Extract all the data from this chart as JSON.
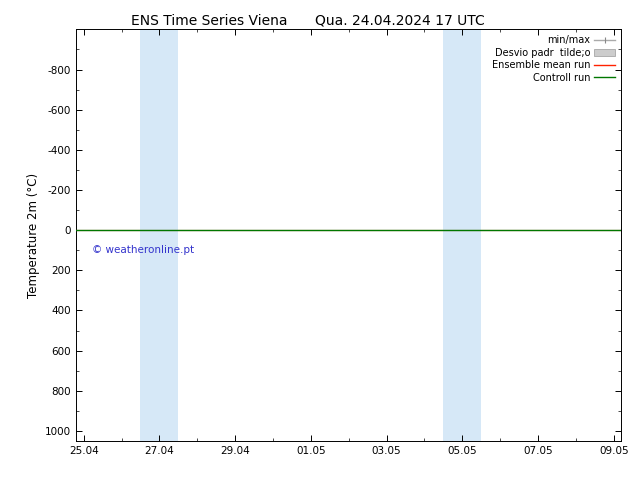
{
  "title_left": "ENS Time Series Viena",
  "title_right": "Qua. 24.04.2024 17 UTC",
  "ylabel": "Temperature 2m (°C)",
  "ylim_top": -1000,
  "ylim_bottom": 1050,
  "yticks": [
    -800,
    -600,
    -400,
    -200,
    0,
    200,
    400,
    600,
    800,
    1000
  ],
  "xtick_labels": [
    "25.04",
    "27.04",
    "29.04",
    "01.05",
    "03.05",
    "05.05",
    "07.05",
    "09.05"
  ],
  "xtick_positions": [
    0,
    2,
    4,
    6,
    8,
    10,
    12,
    14
  ],
  "xlim": [
    -0.2,
    14.2
  ],
  "blue_bands": [
    [
      1.5,
      2.0
    ],
    [
      2.0,
      2.5
    ],
    [
      9.5,
      10.0
    ],
    [
      10.0,
      10.5
    ]
  ],
  "band_color": "#d6e8f7",
  "control_run_color": "#007700",
  "ensemble_mean_color": "#ff2200",
  "watermark": "© weatheronline.pt",
  "watermark_color": "#3333cc",
  "legend_items": [
    "min/max",
    "Desvio padr  tilde;o",
    "Ensemble mean run",
    "Controll run"
  ],
  "background_color": "#ffffff",
  "title_fontsize": 10,
  "tick_fontsize": 7.5,
  "ylabel_fontsize": 8.5,
  "legend_fontsize": 7
}
